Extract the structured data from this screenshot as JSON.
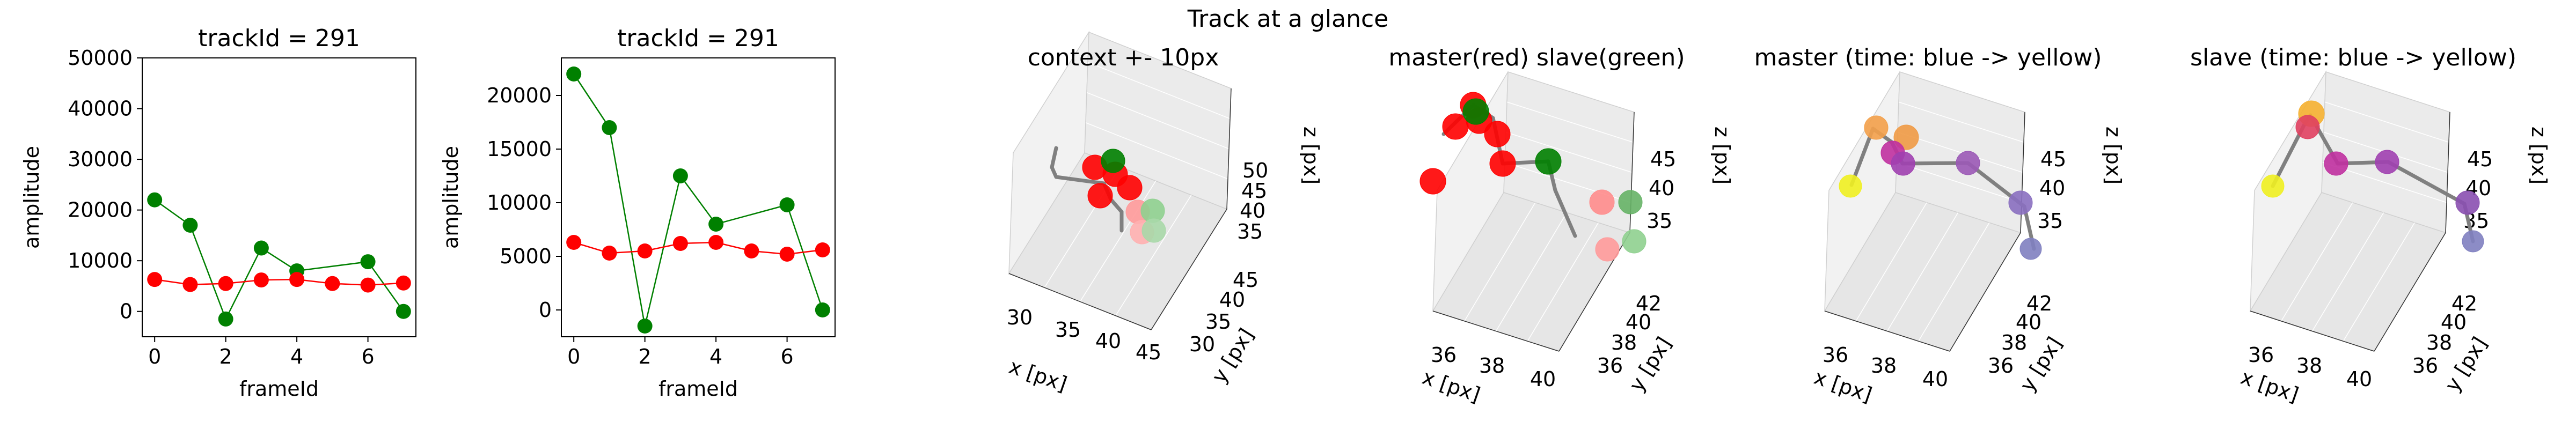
{
  "suptitle": "Track at a glance",
  "chart_data": [
    {
      "type": "line",
      "title": "trackId = 291",
      "xlabel": "frameId",
      "ylabel": "amplitude",
      "xlim": [
        -0.35,
        7.35
      ],
      "ylim": [
        -5000,
        50000
      ],
      "xticks": [
        0,
        2,
        4,
        6
      ],
      "yticks": [
        0,
        10000,
        20000,
        30000,
        40000,
        50000
      ],
      "ytick_labels": [
        "0",
        "10000",
        "20000",
        "30000",
        "40000",
        "50000"
      ],
      "x": [
        0,
        1,
        2,
        3,
        4,
        5,
        6,
        7
      ],
      "series": [
        {
          "color": "#008000",
          "values": [
            22000,
            17000,
            -1500,
            12500,
            8000,
            null,
            9800,
            0
          ]
        },
        {
          "color": "#ff0000",
          "values": [
            6300,
            5300,
            5500,
            6200,
            6300,
            5500,
            5200,
            5600
          ]
        }
      ]
    },
    {
      "type": "line",
      "title": "trackId = 291",
      "xlabel": "frameId",
      "ylabel": "amplitude",
      "xlim": [
        -0.35,
        7.35
      ],
      "ylim": [
        -2500,
        23500
      ],
      "xticks": [
        0,
        2,
        4,
        6
      ],
      "yticks": [
        0,
        5000,
        10000,
        15000,
        20000
      ],
      "ytick_labels": [
        "0",
        "5000",
        "10000",
        "15000",
        "20000"
      ],
      "x": [
        0,
        1,
        2,
        3,
        4,
        5,
        6,
        7
      ],
      "series": [
        {
          "color": "#008000",
          "values": [
            22000,
            17000,
            -1500,
            12500,
            8000,
            null,
            9800,
            0
          ]
        },
        {
          "color": "#ff0000",
          "values": [
            6300,
            5300,
            5500,
            6200,
            6300,
            5500,
            5200,
            5600
          ]
        }
      ]
    },
    {
      "type": "scatter",
      "title": "context +- 10px",
      "xlabel": "x [px]",
      "ylabel": "y [px]",
      "zlabel": "z [px]",
      "xticks": [
        "30",
        "35",
        "40",
        "45"
      ],
      "yticks": [
        "30",
        "35",
        "40",
        "45"
      ],
      "zticks": [
        "35",
        "40",
        "45",
        "50"
      ],
      "points": [
        {
          "color": "#ff0000"
        },
        {
          "color": "#ff0000"
        },
        {
          "color": "#ff0000"
        },
        {
          "color": "#ff0000"
        },
        {
          "color": "#008000"
        },
        {
          "color": "#ff9a9a"
        },
        {
          "color": "#8fd08f"
        },
        {
          "color": "#ffb0b0"
        },
        {
          "color": "#a8d8a8"
        }
      ]
    },
    {
      "type": "scatter",
      "title": "master(red) slave(green)",
      "xlabel": "x [px]",
      "ylabel": "y [px]",
      "zlabel": "z [px]",
      "xticks": [
        "36",
        "38",
        "40"
      ],
      "yticks": [
        "36",
        "38",
        "40",
        "42"
      ],
      "zticks": [
        "35",
        "40",
        "45"
      ],
      "points": [
        {
          "color": "#ff0000"
        },
        {
          "color": "#ff0000"
        },
        {
          "color": "#ff0000"
        },
        {
          "color": "#ff0000"
        },
        {
          "color": "#ff0000"
        },
        {
          "color": "#ff0000"
        },
        {
          "color": "#008000"
        },
        {
          "color": "#008000"
        },
        {
          "color": "#ff8c8c"
        },
        {
          "color": "#ff9a9a"
        },
        {
          "color": "#66b266"
        },
        {
          "color": "#8fd08f"
        }
      ]
    },
    {
      "type": "scatter",
      "title": "master (time: blue -> yellow)",
      "xlabel": "x [px]",
      "ylabel": "y [px]",
      "zlabel": "z [px]",
      "xticks": [
        "36",
        "38",
        "40"
      ],
      "yticks": [
        "36",
        "38",
        "40",
        "42"
      ],
      "zticks": [
        "35",
        "40",
        "45"
      ],
      "points": [
        {
          "color": "#f0f020"
        },
        {
          "color": "#f3a04a"
        },
        {
          "color": "#f09a45"
        },
        {
          "color": "#c030a0"
        },
        {
          "color": "#a040b0"
        },
        {
          "color": "#9b59b6"
        },
        {
          "color": "#8a6fc0"
        },
        {
          "color": "#8080c0"
        }
      ]
    },
    {
      "type": "scatter",
      "title": "slave (time: blue -> yellow)",
      "xlabel": "x [px]",
      "ylabel": "y [px]",
      "zlabel": "z [px]",
      "xticks": [
        "36",
        "38",
        "40"
      ],
      "yticks": [
        "36",
        "38",
        "40",
        "42"
      ],
      "zticks": [
        "35",
        "40",
        "45"
      ],
      "points": [
        {
          "color": "#f0f020"
        },
        {
          "color": "#f5b030"
        },
        {
          "color": "#e04060"
        },
        {
          "color": "#c030a0"
        },
        {
          "color": "#a040b0"
        },
        {
          "color": "#8a4fb0"
        },
        {
          "color": "#8080c0"
        }
      ]
    }
  ]
}
